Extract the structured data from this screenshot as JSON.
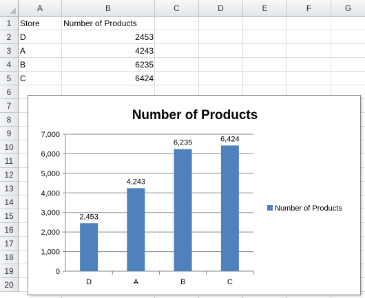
{
  "columns": [
    "A",
    "B",
    "C",
    "D",
    "E",
    "F",
    "G"
  ],
  "rows": [
    "1",
    "2",
    "3",
    "4",
    "5",
    "6",
    "7",
    "8",
    "9",
    "10",
    "11",
    "12",
    "13",
    "14",
    "15",
    "16",
    "17",
    "18",
    "19",
    "20"
  ],
  "table": {
    "header": {
      "store": "Store",
      "products": "Number of Products"
    },
    "rows": [
      {
        "store": "D",
        "products": "2453"
      },
      {
        "store": "A",
        "products": "4243"
      },
      {
        "store": "B",
        "products": "6235"
      },
      {
        "store": "C",
        "products": "6424"
      }
    ]
  },
  "chart_data": {
    "type": "bar",
    "title": "Number of Products",
    "categories": [
      "D",
      "A",
      "B",
      "C"
    ],
    "series": [
      {
        "name": "Number of Products",
        "values": [
          2453,
          4243,
          6235,
          6424
        ],
        "color": "#4f81bd"
      }
    ],
    "data_labels": [
      "2,453",
      "4,243",
      "6,235",
      "6,424"
    ],
    "y_ticks": [
      "0",
      "1,000",
      "2,000",
      "3,000",
      "4,000",
      "5,000",
      "6,000",
      "7,000"
    ],
    "ylim": [
      0,
      7000
    ],
    "grid": true,
    "legend": {
      "position": "right",
      "label": "Number of Products"
    }
  }
}
